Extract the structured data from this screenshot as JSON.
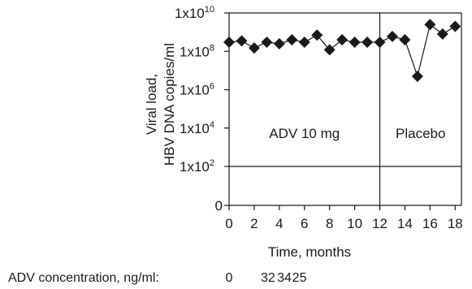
{
  "chart_data": {
    "type": "line",
    "title": "",
    "ylabel_lines": [
      "Viral load,",
      "HBV DNA copies/ml"
    ],
    "xlabel": "Time, months",
    "y_scale": "log10",
    "y_ticks": [
      {
        "value": 0,
        "label": "0"
      },
      {
        "value": 100,
        "label": "1x10",
        "exponent": "2"
      },
      {
        "value": 10000,
        "label": "1x10",
        "exponent": "4"
      },
      {
        "value": 1000000,
        "label": "1x10",
        "exponent": "6"
      },
      {
        "value": 100000000,
        "label": "1x10",
        "exponent": "8"
      },
      {
        "value": 10000000000,
        "label": "1x10",
        "exponent": "10"
      }
    ],
    "x_ticks": [
      0,
      2,
      4,
      6,
      8,
      10,
      12,
      14,
      16,
      18
    ],
    "xlim": [
      0,
      18.5
    ],
    "ylim": [
      0,
      10000000000
    ],
    "grid": false,
    "marker": "diamond",
    "color": "#1a1a1a",
    "series": [
      {
        "x": [
          0,
          1,
          2,
          3,
          4,
          5,
          6,
          7,
          8,
          9,
          10,
          11,
          12,
          13,
          14,
          15,
          16,
          17,
          18
        ],
        "y": [
          300000000,
          350000000,
          150000000,
          300000000,
          250000000,
          400000000,
          300000000,
          700000000,
          120000000,
          400000000,
          300000000,
          300000000,
          300000000,
          600000000,
          400000000,
          5000000,
          2500000000,
          800000000,
          2000000000
        ]
      }
    ],
    "regions": [
      {
        "label": "ADV 10 mg",
        "x_start": 0,
        "x_end": 12
      },
      {
        "label": "Placebo",
        "x_start": 12,
        "x_end": 18.5
      }
    ],
    "reference_line_y": 100,
    "divider_x": 12,
    "footer": {
      "label": "ADV concentration, ng/ml:",
      "values": [
        {
          "month": 0,
          "text": "0"
        },
        {
          "month": 3.1,
          "text": "32"
        },
        {
          "month": 4.4,
          "text": "34"
        },
        {
          "month": 5.6,
          "text": "25"
        }
      ]
    }
  }
}
